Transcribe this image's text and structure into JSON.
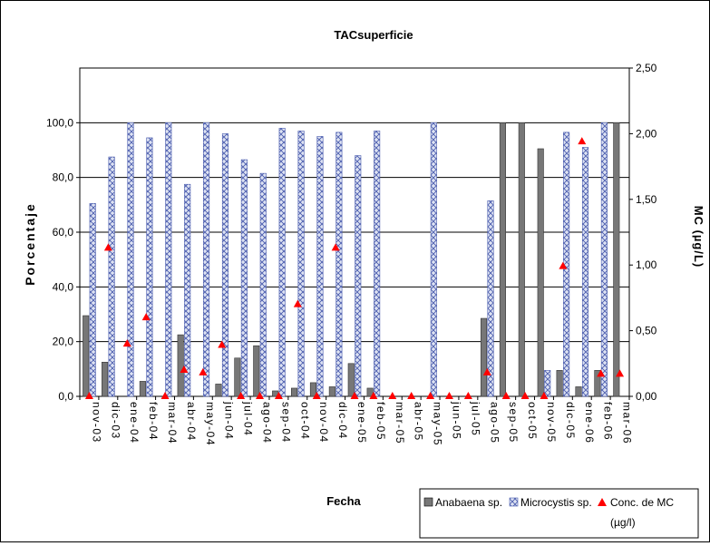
{
  "chart_data": {
    "type": "bar",
    "title": "TACsuperficie",
    "xlabel": "Fecha",
    "ylabel": "Porcentaje",
    "y2label": "MC  (µg/L)",
    "ylim": [
      0,
      120
    ],
    "y2lim": [
      0,
      2.5
    ],
    "grid": true,
    "legend_position": "bottom-right",
    "categories": [
      "nov-03",
      "dic-03",
      "ene-04",
      "feb-04",
      "mar-04",
      "abr-04",
      "may-04",
      "jun-04",
      "jul-04",
      "ago-04",
      "sep-04",
      "oct-04",
      "nov-04",
      "dic-04",
      "ene-05",
      "feb-05",
      "mar-05",
      "abr-05",
      "may-05",
      "jun-05",
      "jul-05",
      "ago-05",
      "sep-05",
      "oct-05",
      "nov-05",
      "dic-05",
      "ene-06",
      "feb-06",
      "mar-06"
    ],
    "yticks": [
      "0,0",
      "20,0",
      "40,0",
      "60,0",
      "80,0",
      "100,0"
    ],
    "y2ticks": [
      "0,00",
      "0,50",
      "1,00",
      "1,50",
      "2,00",
      "2,50"
    ],
    "series": [
      {
        "name": "Anabaena sp.",
        "type": "bar",
        "axis": "left",
        "color": "#777777",
        "values": [
          29.5,
          12.5,
          0,
          5.5,
          0,
          22.5,
          0,
          4.5,
          14,
          18.5,
          2,
          3,
          5,
          3.5,
          12,
          3,
          0,
          0,
          0,
          0,
          0,
          28.5,
          100,
          100,
          90.5,
          9.5,
          3.5,
          9.5,
          100
        ]
      },
      {
        "name": "Microcystis sp.",
        "type": "bar",
        "axis": "left",
        "color": "#dde2f2",
        "values": [
          70.5,
          87.5,
          100,
          94.5,
          100,
          77.5,
          100,
          96,
          86.5,
          81.5,
          98,
          97,
          95,
          96.5,
          88,
          97,
          0,
          0,
          100,
          0,
          0,
          71.5,
          0,
          0,
          9.5,
          96.5,
          91,
          100,
          0
        ]
      },
      {
        "name": "Conc. de MC",
        "label2": "(µg/l)",
        "type": "scatter",
        "axis": "right",
        "color": "#ff0000",
        "values": [
          0,
          1.13,
          0.4,
          0.6,
          0,
          0.2,
          0.18,
          0.39,
          0,
          0,
          0,
          0.7,
          0,
          1.13,
          0,
          0,
          0,
          0,
          0,
          0,
          0,
          0.18,
          0,
          0,
          0,
          0.99,
          1.94,
          0.17,
          0.17
        ]
      }
    ]
  }
}
